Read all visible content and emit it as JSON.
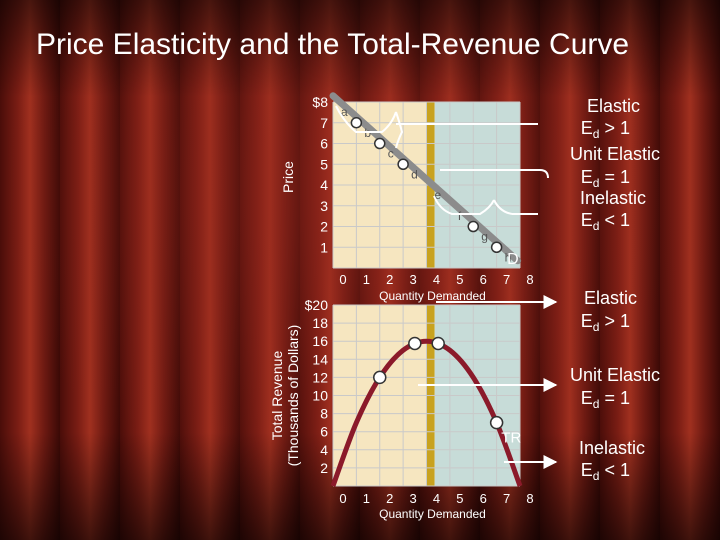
{
  "title": "Price Elasticity and the Total-Revenue Curve",
  "colors": {
    "plot_bg": "#ffffff",
    "grid": "#c9c9c9",
    "elastic_region": "#f6e6c0",
    "unit_band": "#c8a21f",
    "inelastic_region": "#c7dcd8",
    "demand_line": "#8c8c8c",
    "tr_curve": "#8b1a2a",
    "marker": "#ffffff",
    "arrow": "#ffffff",
    "text": "#ffffff"
  },
  "chart_data": [
    {
      "type": "line",
      "name_label": "D",
      "ylabel": "Price",
      "xlabel": "Quantity Demanded",
      "x_ticks": [
        "0",
        "1",
        "2",
        "3",
        "4",
        "5",
        "6",
        "7",
        "8"
      ],
      "y_ticks": [
        "$8",
        "7",
        "6",
        "5",
        "4",
        "3",
        "2",
        "1"
      ],
      "xlim": [
        0,
        8
      ],
      "ylim": [
        0,
        8
      ],
      "grid": true,
      "points": [
        {
          "label": "a",
          "x": 0,
          "y": 8
        },
        {
          "label": "b",
          "x": 1,
          "y": 7
        },
        {
          "label": "c",
          "x": 2,
          "y": 6
        },
        {
          "label": "d",
          "x": 3,
          "y": 5
        },
        {
          "label": "e",
          "x": 4,
          "y": 4
        },
        {
          "label": "f",
          "x": 5,
          "y": 3
        },
        {
          "label": "g",
          "x": 6,
          "y": 2
        },
        {
          "label": "h",
          "x": 7,
          "y": 1
        }
      ],
      "markers_x": [
        1,
        2,
        3,
        6,
        7
      ]
    },
    {
      "type": "line",
      "name_label": "TR",
      "ylabel_lines": [
        "Total Revenue",
        "(Thousands of Dollars)"
      ],
      "xlabel": "Quantity Demanded",
      "x_ticks": [
        "0",
        "1",
        "2",
        "3",
        "4",
        "5",
        "6",
        "7",
        "8"
      ],
      "y_ticks": [
        "$20",
        "18",
        "16",
        "14",
        "12",
        "10",
        "8",
        "6",
        "4",
        "2"
      ],
      "xlim": [
        0,
        8
      ],
      "ylim": [
        0,
        20
      ],
      "grid": true,
      "curve": [
        {
          "x": 0,
          "y": 0
        },
        {
          "x": 1,
          "y": 7
        },
        {
          "x": 2,
          "y": 12
        },
        {
          "x": 3,
          "y": 15
        },
        {
          "x": 4,
          "y": 16
        },
        {
          "x": 5,
          "y": 15
        },
        {
          "x": 6,
          "y": 12
        },
        {
          "x": 7,
          "y": 7
        },
        {
          "x": 8,
          "y": 0
        }
      ],
      "markers": [
        {
          "x": 2,
          "y": 12
        },
        {
          "x": 3.5,
          "y": 15.75
        },
        {
          "x": 4.5,
          "y": 15.75
        },
        {
          "x": 7,
          "y": 7
        }
      ]
    }
  ],
  "annotations": {
    "top": {
      "elastic": "Elastic",
      "elastic_rel": "> 1",
      "unit": "Unit Elastic",
      "unit_rel": "= 1",
      "inelastic": "Inelastic",
      "inelastic_rel": "< 1"
    },
    "bottom": {
      "elastic": "Elastic",
      "elastic_rel": "> 1",
      "unit": "Unit Elastic",
      "unit_rel": "= 1",
      "inelastic": "Inelastic",
      "inelastic_rel": "< 1"
    },
    "symbol": "E",
    "subscript": "d"
  }
}
